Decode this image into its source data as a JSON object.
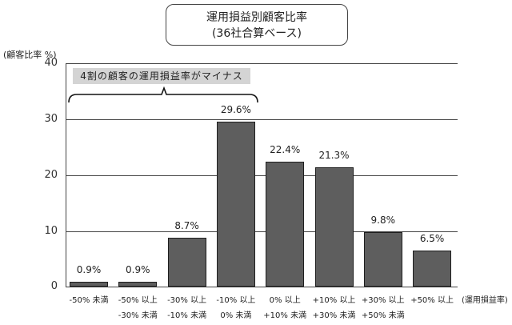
{
  "title": {
    "line1": "運用損益別顧客比率",
    "line2": "(36社合算ベース)"
  },
  "axes": {
    "ylabel": "(顧客比率 %)",
    "xlabel": "(運用損益率)",
    "yticks": [
      "40",
      "30",
      "20",
      "10",
      "0"
    ]
  },
  "annotation": "4割の顧客の運用損益率がマイナス",
  "categories": [
    {
      "line1": "-50% 未満",
      "line2": ""
    },
    {
      "line1": "-50% 以上",
      "line2": "-30% 未満"
    },
    {
      "line1": "-30% 以上",
      "line2": "-10% 未満"
    },
    {
      "line1": "-10% 以上",
      "line2": "0% 未満"
    },
    {
      "line1": "0% 以上",
      "line2": "+10% 未満"
    },
    {
      "line1": "+10% 以上",
      "line2": "+30% 未満"
    },
    {
      "line1": "+30% 以上",
      "line2": "+50% 未満"
    },
    {
      "line1": "+50% 以上",
      "line2": ""
    }
  ],
  "value_labels": [
    "0.9%",
    "0.9%",
    "8.7%",
    "29.6%",
    "22.4%",
    "21.3%",
    "9.8%",
    "6.5%"
  ],
  "colors": {
    "bar": "#5e5e5e",
    "bar_border": "#1e1e1e",
    "annotation_bg": "#d4d4d4",
    "grid": "#444444"
  },
  "chart_data": {
    "type": "bar",
    "title": "運用損益別顧客比率 (36社合算ベース)",
    "categories": [
      "-50% 未満",
      "-50% 以上 -30% 未満",
      "-30% 以上 -10% 未満",
      "-10% 以上 0% 未満",
      "0% 以上 +10% 未満",
      "+10% 以上 +30% 未満",
      "+30% 以上 +50% 未満",
      "+50% 以上"
    ],
    "values": [
      0.9,
      0.9,
      8.7,
      29.6,
      22.4,
      21.3,
      9.8,
      6.5
    ],
    "xlabel": "(運用損益率)",
    "ylabel": "(顧客比率 %)",
    "ylim": [
      0,
      40
    ],
    "yticks": [
      0,
      10,
      20,
      30,
      40
    ],
    "grid": true,
    "legend": null,
    "annotations": [
      {
        "text": "4割の顧客の運用損益率がマイナス",
        "spans_categories": [
          0,
          3
        ]
      }
    ]
  }
}
